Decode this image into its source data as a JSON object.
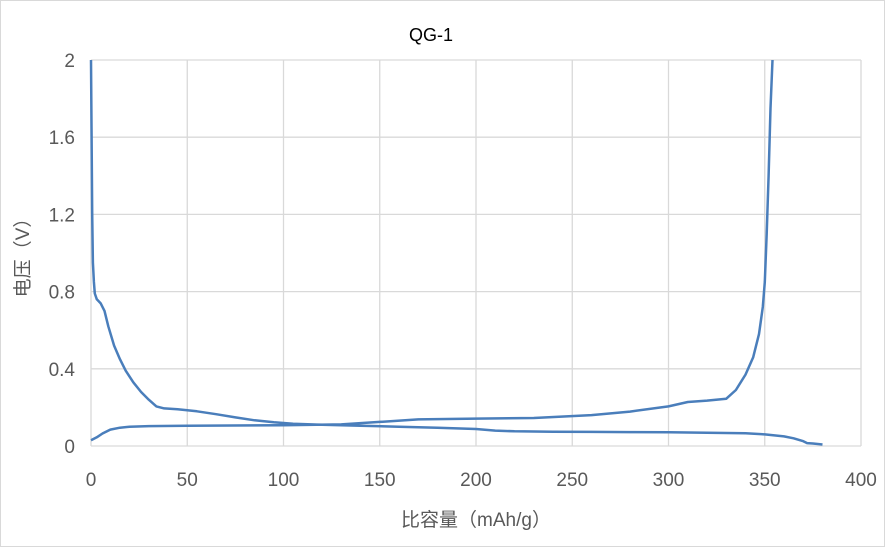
{
  "chart_data": {
    "type": "line",
    "title": "QG-1",
    "xlabel": "比容量（mAh/g）",
    "ylabel": "电压（V）",
    "xlim": [
      0,
      400
    ],
    "ylim": [
      0,
      2
    ],
    "xticks": [
      0,
      50,
      100,
      150,
      200,
      250,
      300,
      350,
      400
    ],
    "yticks": [
      0,
      0.4,
      0.8,
      1.2,
      1.6,
      2
    ],
    "ytick_labels": [
      "0",
      "0.4",
      "0.8",
      "1.2",
      "1.6",
      "2"
    ],
    "grid": true,
    "legend": "none",
    "line_color": "#4a7ebb",
    "grid_color": "#d9d9d9",
    "series": [
      {
        "x": [
          0,
          0.3,
          0.6,
          1,
          1.5,
          2,
          3,
          5,
          7,
          9,
          12,
          15,
          18,
          22,
          26,
          30,
          34,
          38,
          45,
          55,
          65,
          75,
          85,
          95,
          105,
          120,
          140,
          160,
          180,
          200,
          210,
          220,
          240,
          260,
          280,
          300,
          320,
          340,
          350,
          360,
          365,
          370,
          372,
          375,
          380
        ],
        "y": [
          2.0,
          1.6,
          1.2,
          0.95,
          0.85,
          0.79,
          0.76,
          0.74,
          0.7,
          0.62,
          0.52,
          0.45,
          0.39,
          0.33,
          0.28,
          0.24,
          0.205,
          0.195,
          0.19,
          0.18,
          0.165,
          0.148,
          0.133,
          0.123,
          0.115,
          0.11,
          0.105,
          0.1,
          0.095,
          0.088,
          0.08,
          0.076,
          0.074,
          0.073,
          0.072,
          0.071,
          0.069,
          0.066,
          0.06,
          0.05,
          0.04,
          0.025,
          0.015,
          0.013,
          0.008
        ]
      },
      {
        "x": [
          0,
          3,
          6,
          10,
          15,
          20,
          30,
          50,
          100,
          130,
          150,
          170,
          200,
          230,
          260,
          280,
          300,
          310,
          320,
          330,
          335,
          340,
          344,
          347,
          349,
          350,
          351,
          352,
          353,
          354
        ],
        "y": [
          0.03,
          0.045,
          0.065,
          0.085,
          0.095,
          0.1,
          0.103,
          0.105,
          0.107,
          0.112,
          0.125,
          0.138,
          0.142,
          0.145,
          0.16,
          0.178,
          0.205,
          0.228,
          0.235,
          0.245,
          0.29,
          0.37,
          0.46,
          0.58,
          0.72,
          0.85,
          1.1,
          1.4,
          1.75,
          2.0
        ]
      }
    ]
  }
}
